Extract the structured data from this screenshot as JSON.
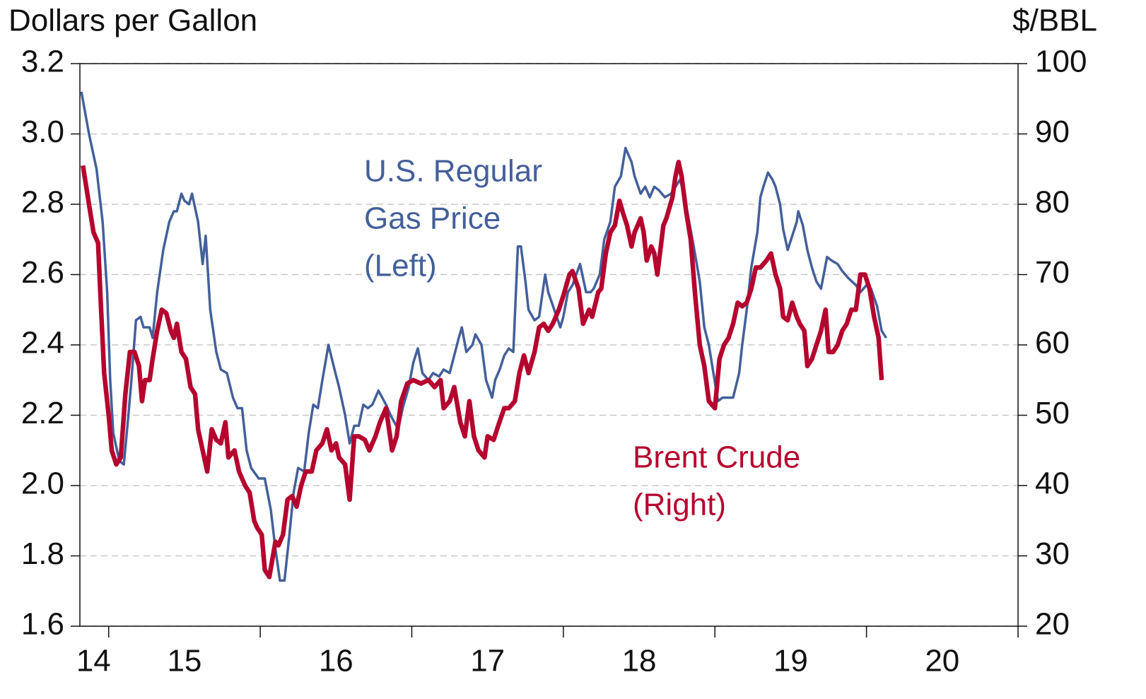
{
  "chart_data": {
    "type": "line",
    "y_label": "Dollars per Gallon",
    "y2_label": "$/BBL",
    "xlim": [
      2014.81,
      2021.0
    ],
    "xticks": [
      {
        "value": 2014.9,
        "label": "14"
      },
      {
        "value": 2015.5,
        "label": "15"
      },
      {
        "value": 2016.5,
        "label": "16"
      },
      {
        "value": 2017.5,
        "label": "17"
      },
      {
        "value": 2018.5,
        "label": "18"
      },
      {
        "value": 2019.5,
        "label": "19"
      },
      {
        "value": 2020.5,
        "label": "20"
      }
    ],
    "xminorticks": [
      2015,
      2016,
      2017,
      2018,
      2019,
      2020,
      2021
    ],
    "ylim": [
      1.6,
      3.2
    ],
    "yticks": [
      1.6,
      1.8,
      {
        "value": 2,
        "label": "2.0"
      },
      2.2,
      2.4,
      2.6,
      2.8,
      {
        "value": 3,
        "label": "3.0"
      },
      3.2
    ],
    "y2lim": [
      20,
      100
    ],
    "y2ticks": [
      20,
      30,
      40,
      50,
      60,
      70,
      80,
      90,
      100
    ],
    "grid": true,
    "series": [
      {
        "label_lines": [
          "U.S. Regular",
          "Gas Price",
          "(Left)"
        ],
        "color": "#44609a",
        "axis": "y",
        "x": [
          2014.82,
          2014.87,
          2014.92,
          2014.96,
          2014.99,
          2015.01,
          2015.03,
          2015.07,
          2015.1,
          2015.13,
          2015.15,
          2015.18,
          2015.21,
          2015.23,
          2015.27,
          2015.29,
          2015.32,
          2015.36,
          2015.4,
          2015.43,
          2015.45,
          2015.48,
          2015.5,
          2015.53,
          2015.55,
          2015.59,
          2015.62,
          2015.64,
          2015.67,
          2015.71,
          2015.74,
          2015.78,
          2015.82,
          2015.85,
          2015.88,
          2015.91,
          2015.94,
          2015.99,
          2016.03,
          2016.07,
          2016.1,
          2016.13,
          2016.16,
          2016.19,
          2016.22,
          2016.25,
          2016.29,
          2016.32,
          2016.35,
          2016.38,
          2016.41,
          2016.45,
          2016.49,
          2016.52,
          2016.56,
          2016.59,
          2016.62,
          2016.65,
          2016.68,
          2016.71,
          2016.74,
          2016.78,
          2016.83,
          2016.86,
          2016.91,
          2016.94,
          2016.98,
          2017.01,
          2017.04,
          2017.07,
          2017.11,
          2017.14,
          2017.18,
          2017.21,
          2017.25,
          2017.28,
          2017.31,
          2017.33,
          2017.36,
          2017.4,
          2017.42,
          2017.46,
          2017.49,
          2017.53,
          2017.55,
          2017.58,
          2017.61,
          2017.64,
          2017.67,
          2017.7,
          2017.72,
          2017.75,
          2017.77,
          2017.81,
          2017.84,
          2017.88,
          2017.9,
          2017.94,
          2017.98,
          2018.0,
          2018.03,
          2018.06,
          2018.11,
          2018.15,
          2018.18,
          2018.2,
          2018.24,
          2018.27,
          2018.31,
          2018.34,
          2018.38,
          2018.41,
          2018.45,
          2018.47,
          2018.51,
          2018.54,
          2018.57,
          2018.6,
          2018.63,
          2018.67,
          2018.71,
          2018.74,
          2018.77,
          2018.8,
          2018.83,
          2018.86,
          2018.9,
          2018.93,
          2018.96,
          2018.99,
          2019.02,
          2019.05,
          2019.09,
          2019.12,
          2019.16,
          2019.18,
          2019.21,
          2019.24,
          2019.28,
          2019.3,
          2019.32,
          2019.35,
          2019.38,
          2019.4,
          2019.43,
          2019.45,
          2019.48,
          2019.51,
          2019.54,
          2019.55,
          2019.58,
          2019.61,
          2019.64,
          2019.67,
          2019.7,
          2019.74,
          2019.77,
          2019.81,
          2019.84,
          2019.88,
          2019.93,
          2019.96,
          2020.0,
          2020.03,
          2020.07,
          2020.1,
          2020.13
        ],
        "values": [
          3.12,
          3.0,
          2.9,
          2.75,
          2.55,
          2.3,
          2.15,
          2.07,
          2.06,
          2.2,
          2.3,
          2.47,
          2.48,
          2.45,
          2.45,
          2.42,
          2.55,
          2.67,
          2.75,
          2.78,
          2.78,
          2.83,
          2.81,
          2.8,
          2.83,
          2.75,
          2.63,
          2.71,
          2.5,
          2.38,
          2.33,
          2.32,
          2.25,
          2.22,
          2.22,
          2.1,
          2.05,
          2.02,
          2.02,
          1.93,
          1.82,
          1.73,
          1.73,
          1.85,
          1.98,
          2.05,
          2.04,
          2.15,
          2.23,
          2.22,
          2.3,
          2.4,
          2.33,
          2.28,
          2.2,
          2.12,
          2.17,
          2.17,
          2.23,
          2.22,
          2.23,
          2.27,
          2.23,
          2.2,
          2.16,
          2.22,
          2.28,
          2.35,
          2.39,
          2.32,
          2.3,
          2.32,
          2.31,
          2.33,
          2.32,
          2.37,
          2.42,
          2.45,
          2.38,
          2.4,
          2.43,
          2.4,
          2.3,
          2.25,
          2.3,
          2.33,
          2.37,
          2.39,
          2.38,
          2.68,
          2.68,
          2.58,
          2.5,
          2.47,
          2.48,
          2.6,
          2.55,
          2.5,
          2.45,
          2.48,
          2.55,
          2.57,
          2.63,
          2.55,
          2.55,
          2.56,
          2.6,
          2.7,
          2.75,
          2.85,
          2.88,
          2.96,
          2.92,
          2.88,
          2.83,
          2.85,
          2.82,
          2.85,
          2.84,
          2.82,
          2.83,
          2.85,
          2.87,
          2.82,
          2.75,
          2.68,
          2.58,
          2.45,
          2.4,
          2.32,
          2.24,
          2.25,
          2.25,
          2.25,
          2.32,
          2.4,
          2.5,
          2.62,
          2.72,
          2.82,
          2.85,
          2.89,
          2.87,
          2.85,
          2.8,
          2.73,
          2.67,
          2.71,
          2.75,
          2.78,
          2.74,
          2.67,
          2.62,
          2.58,
          2.56,
          2.65,
          2.64,
          2.63,
          2.61,
          2.59,
          2.57,
          2.55,
          2.57,
          2.56,
          2.51,
          2.44,
          2.42
        ]
      },
      {
        "label_lines": [
          "Brent Crude",
          "(Right)"
        ],
        "color": "#b5052f",
        "axis": "y2",
        "x": [
          2014.83,
          2014.87,
          2014.9,
          2014.93,
          2014.95,
          2014.97,
          2015.0,
          2015.02,
          2015.05,
          2015.08,
          2015.11,
          2015.14,
          2015.17,
          2015.2,
          2015.22,
          2015.24,
          2015.27,
          2015.29,
          2015.32,
          2015.35,
          2015.38,
          2015.41,
          2015.43,
          2015.45,
          2015.48,
          2015.51,
          2015.54,
          2015.57,
          2015.59,
          2015.62,
          2015.65,
          2015.68,
          2015.71,
          2015.74,
          2015.77,
          2015.79,
          2015.83,
          2015.86,
          2015.9,
          2015.93,
          2015.96,
          2015.98,
          2016.01,
          2016.03,
          2016.06,
          2016.1,
          2016.12,
          2016.15,
          2016.18,
          2016.21,
          2016.24,
          2016.27,
          2016.3,
          2016.34,
          2016.37,
          2016.41,
          2016.44,
          2016.47,
          2016.5,
          2016.52,
          2016.56,
          2016.59,
          2016.62,
          2016.65,
          2016.69,
          2016.72,
          2016.76,
          2016.79,
          2016.83,
          2016.85,
          2016.87,
          2016.9,
          2016.93,
          2016.97,
          2017.01,
          2017.06,
          2017.11,
          2017.15,
          2017.19,
          2017.21,
          2017.25,
          2017.28,
          2017.32,
          2017.35,
          2017.38,
          2017.41,
          2017.44,
          2017.48,
          2017.5,
          2017.54,
          2017.57,
          2017.61,
          2017.64,
          2017.68,
          2017.71,
          2017.74,
          2017.77,
          2017.81,
          2017.84,
          2017.87,
          2017.9,
          2017.93,
          2017.97,
          2018.0,
          2018.04,
          2018.06,
          2018.1,
          2018.13,
          2018.17,
          2018.19,
          2018.23,
          2018.25,
          2018.28,
          2018.31,
          2018.34,
          2018.37,
          2018.39,
          2018.42,
          2018.45,
          2018.47,
          2018.51,
          2018.53,
          2018.55,
          2018.58,
          2018.6,
          2018.62,
          2018.66,
          2018.68,
          2018.72,
          2018.74,
          2018.76,
          2018.78,
          2018.81,
          2018.84,
          2018.87,
          2018.9,
          2018.93,
          2018.96,
          2019.0,
          2019.03,
          2019.06,
          2019.09,
          2019.12,
          2019.15,
          2019.18,
          2019.21,
          2019.24,
          2019.27,
          2019.3,
          2019.34,
          2019.37,
          2019.4,
          2019.43,
          2019.45,
          2019.48,
          2019.51,
          2019.54,
          2019.56,
          2019.59,
          2019.61,
          2019.64,
          2019.67,
          2019.7,
          2019.73,
          2019.75,
          2019.78,
          2019.81,
          2019.84,
          2019.87,
          2019.9,
          2019.93,
          2019.96,
          2019.99,
          2020.02,
          2020.05,
          2020.08,
          2020.1
        ],
        "values": [
          85.5,
          80,
          76,
          74.5,
          65,
          56,
          50,
          45,
          43,
          44,
          53,
          59,
          59,
          57,
          52,
          55,
          55,
          58,
          62,
          65,
          64.5,
          62,
          61,
          63,
          59,
          58,
          54,
          53,
          48,
          45,
          42,
          48,
          46.5,
          46,
          49,
          44,
          45,
          42,
          40,
          39,
          35,
          34,
          33,
          28,
          27,
          32,
          31.5,
          33,
          38,
          38.5,
          37,
          40,
          42,
          42,
          45,
          46,
          48,
          45,
          46,
          44,
          43,
          38,
          47,
          47,
          46.5,
          45,
          47,
          49,
          51,
          48,
          45,
          47,
          52,
          54.5,
          55,
          54.5,
          55,
          54,
          55,
          51,
          52,
          54,
          49,
          47,
          52,
          47,
          45,
          44,
          47,
          46.5,
          48.5,
          51,
          51,
          52,
          56,
          58.5,
          56,
          59,
          62.5,
          63,
          62,
          63,
          65,
          67,
          70,
          70.5,
          68,
          63,
          65,
          64,
          67.5,
          68,
          73,
          76,
          77,
          80.5,
          79,
          77,
          74,
          76,
          78,
          76,
          72,
          74,
          73,
          70,
          77,
          78,
          81,
          84,
          86,
          84,
          79,
          75,
          67,
          60,
          57,
          52,
          51,
          58,
          60,
          61,
          63,
          66,
          65.5,
          66,
          68,
          71,
          71,
          72,
          73,
          70,
          68,
          64,
          63.5,
          66,
          64,
          63,
          62,
          57,
          58,
          60,
          62,
          65,
          59,
          59,
          60,
          62,
          63,
          65,
          65,
          70,
          70,
          68,
          64,
          61,
          55
        ]
      }
    ]
  }
}
